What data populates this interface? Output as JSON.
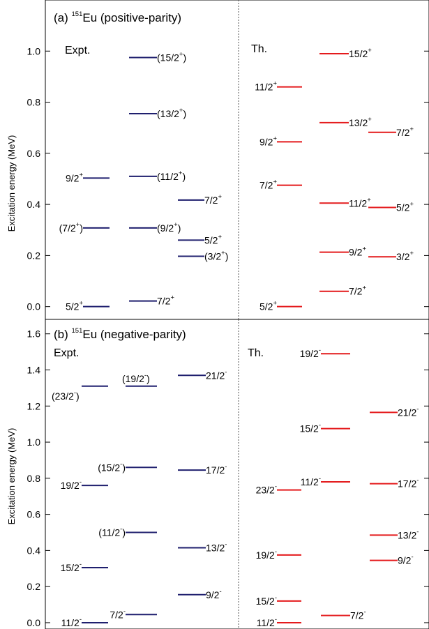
{
  "chart_data": [
    {
      "type": "level-scheme",
      "panel": "a",
      "title": {
        "prefix": "(a) ",
        "mass": "151",
        "element": "Eu",
        "suffix": " (positive-parity)"
      },
      "ylabel": "Excitation energy (MeV)",
      "ylim": [
        -0.05,
        1.2
      ],
      "yticks": [
        0.0,
        0.2,
        0.4,
        0.6,
        0.8,
        1.0
      ],
      "tick_labels": [
        "0.0",
        "0.2",
        "0.4",
        "0.6",
        "0.8",
        "1.0"
      ],
      "sections": [
        {
          "label": "Expt.",
          "color": "#1f1f6e"
        },
        {
          "label": "Th.",
          "color": "#e41a1c"
        }
      ],
      "levels": [
        {
          "section": 0,
          "column": 0,
          "energy": 0.0,
          "label": "5/2",
          "sup": "+",
          "pre": "",
          "post": "",
          "pos": "left"
        },
        {
          "section": 0,
          "column": 0,
          "energy": 0.308,
          "label": "(7/2",
          "sup": "+",
          "pre": "",
          "post": ")",
          "pos": "left"
        },
        {
          "section": 0,
          "column": 0,
          "energy": 0.503,
          "label": "9/2",
          "sup": "+",
          "pre": "",
          "post": "",
          "pos": "left"
        },
        {
          "section": 0,
          "column": 1,
          "energy": 0.022,
          "label": "7/2",
          "sup": "+",
          "pre": "",
          "post": "",
          "pos": "right"
        },
        {
          "section": 0,
          "column": 1,
          "energy": 0.308,
          "label": "(9/2",
          "sup": "+",
          "pre": "",
          "post": ")",
          "pos": "right"
        },
        {
          "section": 0,
          "column": 1,
          "energy": 0.51,
          "label": "(11/2",
          "sup": "+",
          "pre": "",
          "post": ")",
          "pos": "right"
        },
        {
          "section": 0,
          "column": 1,
          "energy": 0.755,
          "label": "(13/2",
          "sup": "+",
          "pre": "",
          "post": ")",
          "pos": "right"
        },
        {
          "section": 0,
          "column": 1,
          "energy": 0.975,
          "label": "(15/2",
          "sup": "+",
          "pre": "",
          "post": ")",
          "pos": "right"
        },
        {
          "section": 0,
          "column": 2,
          "energy": 0.197,
          "label": "(3/2",
          "sup": "+",
          "pre": "",
          "post": ")",
          "pos": "right"
        },
        {
          "section": 0,
          "column": 2,
          "energy": 0.26,
          "label": "5/2",
          "sup": "+",
          "pre": "",
          "post": "",
          "pos": "right"
        },
        {
          "section": 0,
          "column": 2,
          "energy": 0.417,
          "label": "7/2",
          "sup": "+",
          "pre": "",
          "post": "",
          "pos": "right"
        },
        {
          "section": 1,
          "column": 0,
          "energy": 0.0,
          "label": "5/2",
          "sup": "+",
          "pre": "",
          "post": "",
          "pos": "left"
        },
        {
          "section": 1,
          "column": 0,
          "energy": 0.475,
          "label": "7/2",
          "sup": "+",
          "pre": "",
          "post": "",
          "pos": "left"
        },
        {
          "section": 1,
          "column": 0,
          "energy": 0.645,
          "label": "9/2",
          "sup": "+",
          "pre": "",
          "post": "",
          "pos": "left"
        },
        {
          "section": 1,
          "column": 0,
          "energy": 0.86,
          "label": "11/2",
          "sup": "+",
          "pre": "",
          "post": "",
          "pos": "left"
        },
        {
          "section": 1,
          "column": 1,
          "energy": 0.06,
          "label": "7/2",
          "sup": "+",
          "pre": "",
          "post": "",
          "pos": "right"
        },
        {
          "section": 1,
          "column": 1,
          "energy": 0.213,
          "label": "9/2",
          "sup": "+",
          "pre": "",
          "post": "",
          "pos": "right"
        },
        {
          "section": 1,
          "column": 1,
          "energy": 0.405,
          "label": "11/2",
          "sup": "+",
          "pre": "",
          "post": "",
          "pos": "right"
        },
        {
          "section": 1,
          "column": 1,
          "energy": 0.72,
          "label": "13/2",
          "sup": "+",
          "pre": "",
          "post": "",
          "pos": "right"
        },
        {
          "section": 1,
          "column": 1,
          "energy": 0.99,
          "label": "15/2",
          "sup": "+",
          "pre": "",
          "post": "",
          "pos": "right"
        },
        {
          "section": 1,
          "column": 2,
          "energy": 0.195,
          "label": "3/2",
          "sup": "+",
          "pre": "",
          "post": "",
          "pos": "right"
        },
        {
          "section": 1,
          "column": 2,
          "energy": 0.388,
          "label": "5/2",
          "sup": "+",
          "pre": "",
          "post": "",
          "pos": "right"
        },
        {
          "section": 1,
          "column": 2,
          "energy": 0.682,
          "label": "7/2",
          "sup": "+",
          "pre": "",
          "post": "",
          "pos": "right"
        }
      ]
    },
    {
      "type": "level-scheme",
      "panel": "b",
      "title": {
        "prefix": "(b) ",
        "mass": "151",
        "element": "Eu",
        "suffix": " (negative-parity)"
      },
      "ylabel": "Excitation energy (MeV)",
      "ylim": [
        -0.035,
        1.68
      ],
      "yticks": [
        0.0,
        0.2,
        0.4,
        0.6,
        0.8,
        1.0,
        1.2,
        1.4,
        1.6
      ],
      "tick_labels": [
        "0.0",
        "0.2",
        "0.4",
        "0.6",
        "0.8",
        "1.0",
        "1.2",
        "1.4",
        "1.6"
      ],
      "sections": [
        {
          "label": "Expt.",
          "color": "#1f1f6e"
        },
        {
          "label": "Th.",
          "color": "#e41a1c"
        }
      ],
      "levels": [
        {
          "section": 0,
          "column": 0,
          "energy": 0.0,
          "label": "11/2",
          "sup": "-",
          "pre": "",
          "post": "",
          "pos": "left"
        },
        {
          "section": 0,
          "column": 0,
          "energy": 0.305,
          "label": "15/2",
          "sup": "-",
          "pre": "",
          "post": "",
          "pos": "left"
        },
        {
          "section": 0,
          "column": 0,
          "energy": 0.76,
          "label": "19/2",
          "sup": "-",
          "pre": "",
          "post": "",
          "pos": "left"
        },
        {
          "section": 0,
          "column": 0,
          "energy": 1.31,
          "label": "(23/2",
          "sup": "-",
          "pre": "",
          "post": ")",
          "pos": "below-left"
        },
        {
          "section": 0,
          "column": 1,
          "energy": 0.045,
          "label": "7/2",
          "sup": "-",
          "pre": "",
          "post": "",
          "pos": "left"
        },
        {
          "section": 0,
          "column": 1,
          "energy": 0.5,
          "label": "(11/2",
          "sup": "-",
          "pre": "",
          "post": ")",
          "pos": "left"
        },
        {
          "section": 0,
          "column": 1,
          "energy": 0.86,
          "label": "(15/2",
          "sup": "-",
          "pre": "",
          "post": ")",
          "pos": "left"
        },
        {
          "section": 0,
          "column": 1,
          "energy": 1.31,
          "label": "(19/2",
          "sup": "-",
          "pre": "",
          "post": ")",
          "pos": "above"
        },
        {
          "section": 0,
          "column": 2,
          "energy": 0.155,
          "label": "9/2",
          "sup": "-",
          "pre": "",
          "post": "",
          "pos": "right"
        },
        {
          "section": 0,
          "column": 2,
          "energy": 0.415,
          "label": "13/2",
          "sup": "-",
          "pre": "",
          "post": "",
          "pos": "right"
        },
        {
          "section": 0,
          "column": 2,
          "energy": 0.845,
          "label": "17/2",
          "sup": "-",
          "pre": "",
          "post": "",
          "pos": "right"
        },
        {
          "section": 0,
          "column": 2,
          "energy": 1.37,
          "label": "21/2",
          "sup": "-",
          "pre": "",
          "post": "",
          "pos": "right"
        },
        {
          "section": 1,
          "column": 0,
          "energy": 0.0,
          "label": "11/2",
          "sup": "-",
          "pre": "",
          "post": "",
          "pos": "left"
        },
        {
          "section": 1,
          "column": 0,
          "energy": 0.12,
          "label": "15/2",
          "sup": "-",
          "pre": "",
          "post": "",
          "pos": "left"
        },
        {
          "section": 1,
          "column": 0,
          "energy": 0.375,
          "label": "19/2",
          "sup": "-",
          "pre": "",
          "post": "",
          "pos": "left"
        },
        {
          "section": 1,
          "column": 0,
          "energy": 0.735,
          "label": "23/2",
          "sup": "-",
          "pre": "",
          "post": "",
          "pos": "left"
        },
        {
          "section": 1,
          "column": 1,
          "energy": 0.04,
          "label": "7/2",
          "sup": "-",
          "pre": "",
          "post": "",
          "pos": "right"
        },
        {
          "section": 1,
          "column": 1,
          "energy": 0.78,
          "label": "11/2",
          "sup": "-",
          "pre": "",
          "post": "",
          "pos": "left"
        },
        {
          "section": 1,
          "column": 1,
          "energy": 1.075,
          "label": "15/2",
          "sup": "-",
          "pre": "",
          "post": "",
          "pos": "left"
        },
        {
          "section": 1,
          "column": 1,
          "energy": 1.49,
          "label": "19/2",
          "sup": "-",
          "pre": "",
          "post": "",
          "pos": "left"
        },
        {
          "section": 1,
          "column": 2,
          "energy": 0.345,
          "label": "9/2",
          "sup": "-",
          "pre": "",
          "post": "",
          "pos": "right"
        },
        {
          "section": 1,
          "column": 2,
          "energy": 0.485,
          "label": "13/2",
          "sup": "-",
          "pre": "",
          "post": "",
          "pos": "right"
        },
        {
          "section": 1,
          "column": 2,
          "energy": 0.77,
          "label": "17/2",
          "sup": "-",
          "pre": "",
          "post": "",
          "pos": "right"
        },
        {
          "section": 1,
          "column": 2,
          "energy": 1.165,
          "label": "21/2",
          "sup": "-",
          "pre": "",
          "post": "",
          "pos": "right"
        }
      ]
    }
  ]
}
